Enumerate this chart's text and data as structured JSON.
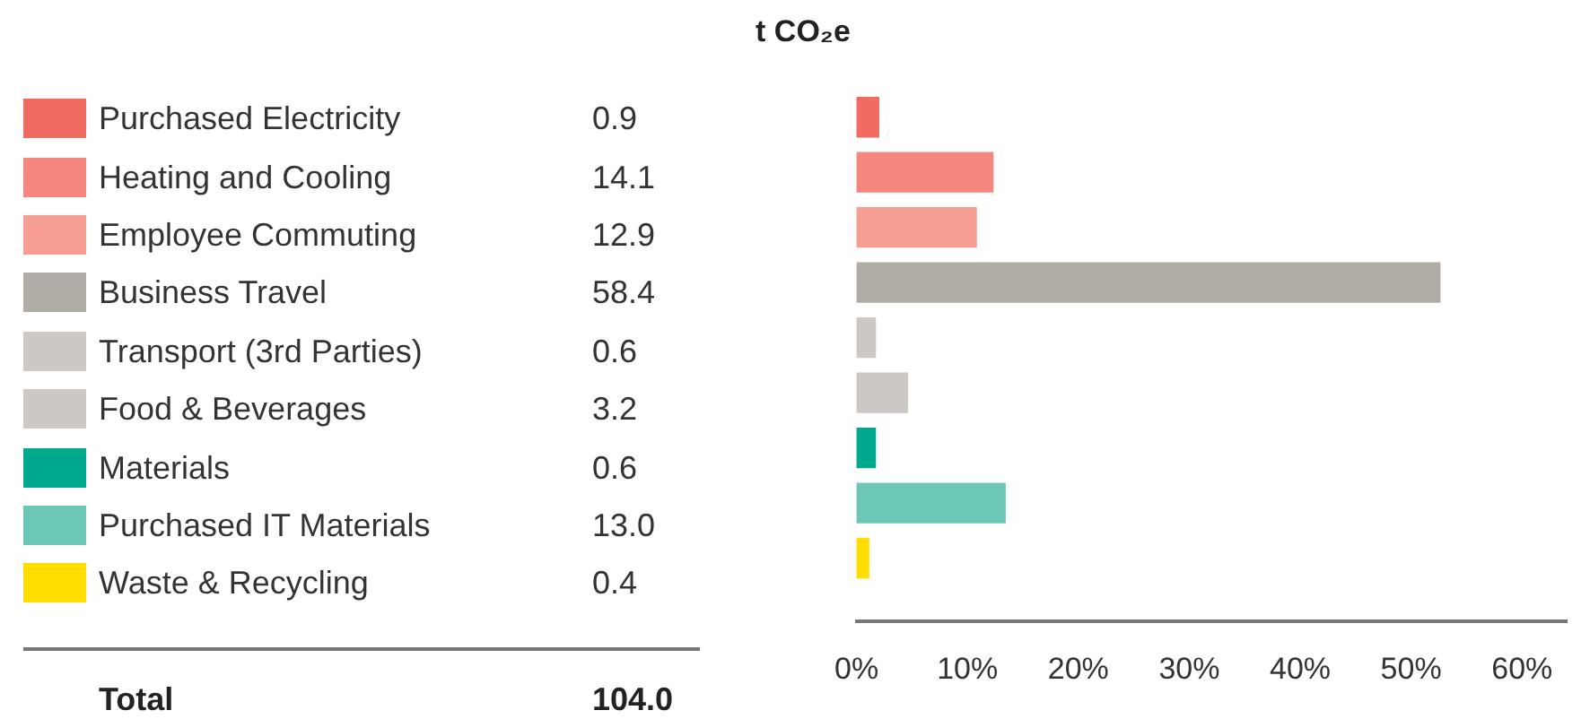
{
  "chart_data": [
    {
      "type": "other",
      "title": "t CO₂e",
      "categories": [
        "Purchased Electricity",
        "Heating and Cooling",
        "Employee Commuting",
        "Business Travel",
        "Transport (3rd Parties)",
        "Food & Beverages",
        "Materials",
        "Purchased IT Materials",
        "Waste & Recycling"
      ],
      "value_labels": [
        "0.9",
        "14.1",
        "12.9",
        "58.4",
        "0.6",
        "3.2",
        "0.6",
        "13.0",
        "0.4"
      ],
      "colors": [
        "#f26b63",
        "#f5877f",
        "#f69d94",
        "#b1ada6",
        "#ccc8c3",
        "#ccc8c3",
        "#00a88d",
        "#6cc7b6",
        "#ffdd00"
      ],
      "annotations": [
        "Total",
        "104.0"
      ]
    },
    {
      "type": "bar",
      "orientation": "horizontal",
      "tick_labels": "x",
      "categories": [
        null,
        null,
        null,
        null,
        null,
        null,
        null,
        null,
        null
      ],
      "values": [
        2.0,
        12.3,
        10.8,
        52.6,
        1.7,
        4.6,
        1.7,
        13.4,
        1.1
      ],
      "colors": [
        "#f26b63",
        "#f5877f",
        "#f69d94",
        "#b1ada6",
        "#ccc8c3",
        "#ccc8c3",
        "#00a88d",
        "#6cc7b6",
        "#ffdd00"
      ],
      "xlim": [
        0,
        64
      ],
      "xticks": [
        {
          "value": 0,
          "label": "0%"
        },
        {
          "value": 10,
          "label": "10%"
        },
        {
          "value": 20,
          "label": "20%"
        },
        {
          "value": 30,
          "label": "30%"
        },
        {
          "value": 40,
          "label": "40%"
        },
        {
          "value": 50,
          "label": "50%"
        },
        {
          "value": 60,
          "label": "60%"
        }
      ],
      "grid": false
    }
  ]
}
